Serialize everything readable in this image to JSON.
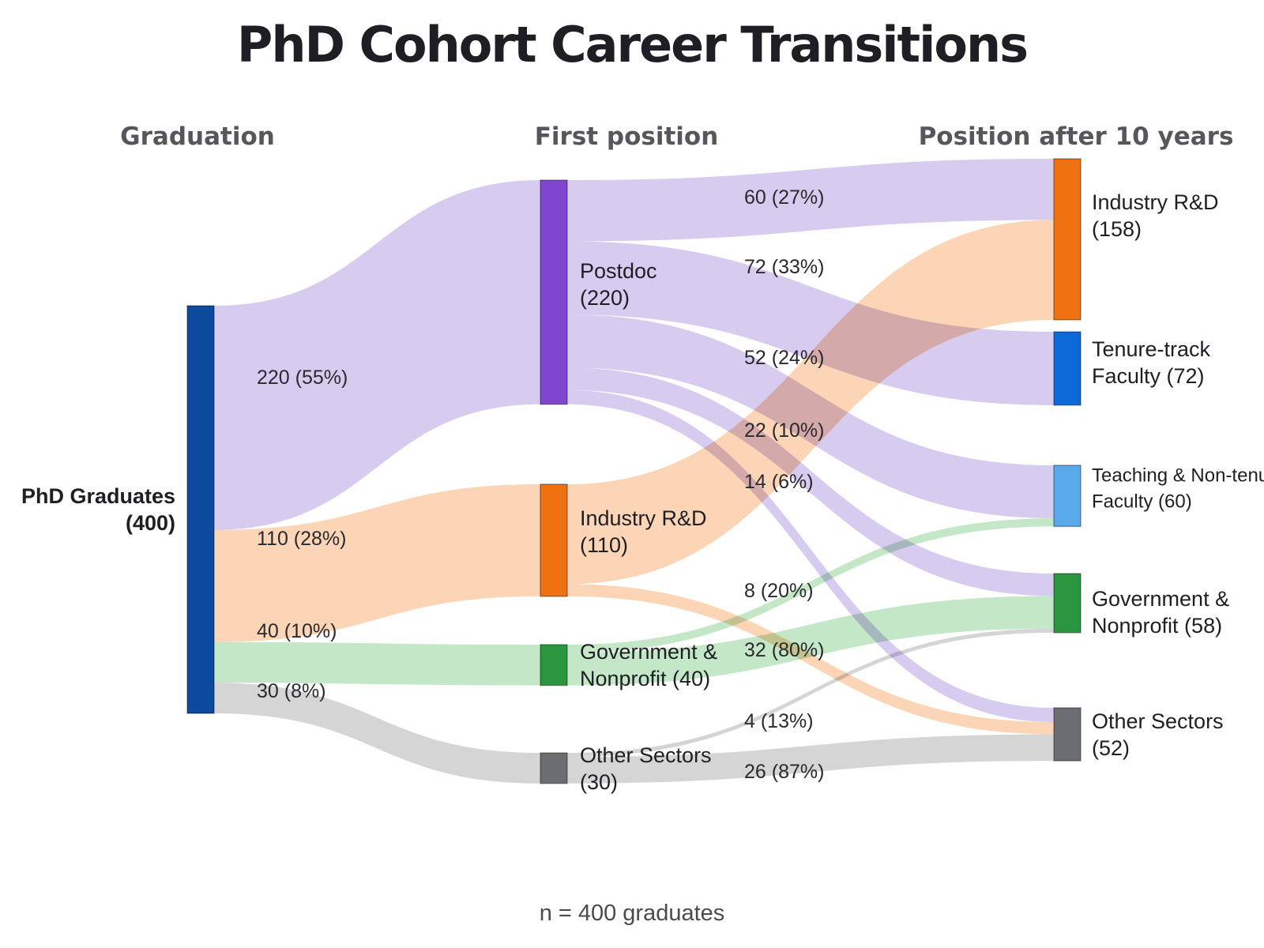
{
  "title": "PhD Cohort Career Transitions",
  "footer": "n = 400 graduates",
  "columns": [
    "Graduation",
    "First position",
    "Position after 10 years"
  ],
  "colors": {
    "source": "#0b4a9c",
    "postdoc": "#8046d0",
    "industry": "#ef7110",
    "government": "#2a9640",
    "other": "#6b6d70",
    "tenure": "#0c6ad8",
    "teaching": "#5aaaeb",
    "flow_postdoc": "#cdbcec",
    "flow_industry": "#fac9a0",
    "flow_government": "#b3e2b7",
    "flow_other": "#c9c9cb"
  },
  "nodes": [
    {
      "id": "phd",
      "col": 0,
      "lines": [
        "PhD Graduates",
        "(400)"
      ],
      "color": "source",
      "label_side": "left"
    },
    {
      "id": "postdoc1",
      "col": 1,
      "lines": [
        "Postdoc",
        "(220)"
      ],
      "color": "postdoc"
    },
    {
      "id": "industry1",
      "col": 1,
      "lines": [
        "Industry R&D",
        "(110)"
      ],
      "color": "industry"
    },
    {
      "id": "gov1",
      "col": 1,
      "lines": [
        "Government &",
        "Nonprofit (40)"
      ],
      "color": "government"
    },
    {
      "id": "other1",
      "col": 1,
      "lines": [
        "Other Sectors",
        "(30)"
      ],
      "color": "other"
    },
    {
      "id": "industry2",
      "col": 2,
      "lines": [
        "Industry R&D",
        "(158)"
      ],
      "color": "industry"
    },
    {
      "id": "tenure2",
      "col": 2,
      "lines": [
        "Tenure-track",
        "Faculty (72)"
      ],
      "color": "tenure"
    },
    {
      "id": "teach2",
      "col": 2,
      "lines": [
        "Teaching & Non-tenure",
        "Faculty (60)"
      ],
      "color": "teaching"
    },
    {
      "id": "gov2",
      "col": 2,
      "lines": [
        "Government &",
        "Nonprofit (58)"
      ],
      "color": "government"
    },
    {
      "id": "other2",
      "col": 2,
      "lines": [
        "Other Sectors",
        "(52)"
      ],
      "color": "other"
    }
  ],
  "links": [
    {
      "source": "phd",
      "target": "postdoc1",
      "value": 220,
      "label": "220 (55%)",
      "color": "flow_postdoc"
    },
    {
      "source": "phd",
      "target": "industry1",
      "value": 110,
      "label": "110 (28%)",
      "color": "flow_industry"
    },
    {
      "source": "phd",
      "target": "gov1",
      "value": 40,
      "label": "40 (10%)",
      "color": "flow_government"
    },
    {
      "source": "phd",
      "target": "other1",
      "value": 30,
      "label": "30 (8%)",
      "color": "flow_other"
    },
    {
      "source": "postdoc1",
      "target": "industry2",
      "value": 60,
      "label": "60 (27%)",
      "color": "flow_postdoc"
    },
    {
      "source": "postdoc1",
      "target": "tenure2",
      "value": 72,
      "label": "72 (33%)",
      "color": "flow_postdoc"
    },
    {
      "source": "postdoc1",
      "target": "teach2",
      "value": 52,
      "label": "52 (24%)",
      "color": "flow_postdoc"
    },
    {
      "source": "postdoc1",
      "target": "gov2",
      "value": 22,
      "label": "22 (10%)",
      "color": "flow_postdoc"
    },
    {
      "source": "postdoc1",
      "target": "other2",
      "value": 14,
      "label": "14 (6%)",
      "color": "flow_postdoc"
    },
    {
      "source": "industry1",
      "target": "industry2",
      "value": 98,
      "label": "",
      "color": "flow_industry"
    },
    {
      "source": "industry1",
      "target": "other2",
      "value": 12,
      "label": "",
      "color": "flow_industry"
    },
    {
      "source": "gov1",
      "target": "teach2",
      "value": 8,
      "label": "8 (20%)",
      "color": "flow_government"
    },
    {
      "source": "gov1",
      "target": "gov2",
      "value": 32,
      "label": "32 (80%)",
      "color": "flow_government"
    },
    {
      "source": "other1",
      "target": "gov2",
      "value": 4,
      "label": "4 (13%)",
      "color": "flow_other"
    },
    {
      "source": "other1",
      "target": "other2",
      "value": 26,
      "label": "26 (87%)",
      "color": "flow_other"
    }
  ]
}
